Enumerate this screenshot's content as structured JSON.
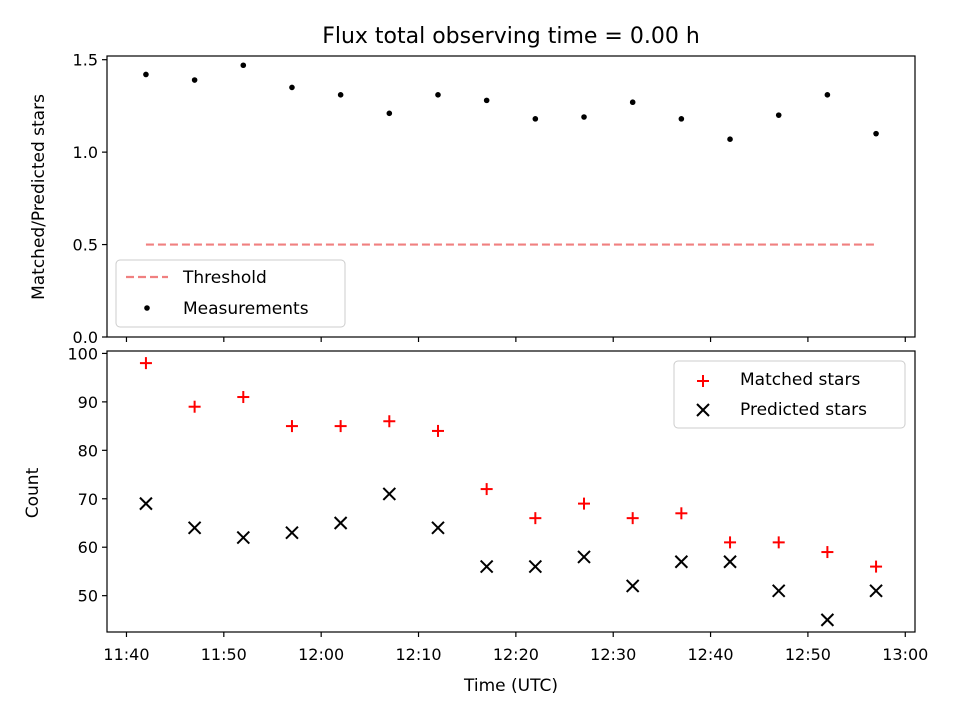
{
  "chart_data": [
    {
      "type": "scatter",
      "title": "Flux total observing time = 0.00 h",
      "xlabel": "",
      "ylabel": "Matched/Predicted stars",
      "ylim": [
        0,
        1.52
      ],
      "yticks": [
        "0.0",
        "0.5",
        "1.0",
        "1.5"
      ],
      "legend_position": "lower-left",
      "threshold": {
        "name": "Threshold",
        "value": 0.5,
        "x_start": "11:42",
        "x_end": "12:57",
        "color": "#f08080",
        "style": "dashed"
      },
      "series": [
        {
          "name": "Measurements",
          "color": "#000000",
          "marker": "dot",
          "x": [
            "11:42",
            "11:47",
            "11:52",
            "11:57",
            "12:02",
            "12:07",
            "12:12",
            "12:17",
            "12:22",
            "12:27",
            "12:32",
            "12:37",
            "12:42",
            "12:47",
            "12:52",
            "12:57"
          ],
          "y": [
            1.42,
            1.39,
            1.47,
            1.35,
            1.31,
            1.21,
            1.31,
            1.28,
            1.18,
            1.19,
            1.27,
            1.18,
            1.07,
            1.2,
            1.31,
            1.1
          ]
        }
      ]
    },
    {
      "type": "scatter",
      "title": "",
      "xlabel": "Time (UTC)",
      "ylabel": "Count",
      "ylim": [
        42.5,
        100.5
      ],
      "yticks": [
        "50",
        "60",
        "70",
        "80",
        "90",
        "100"
      ],
      "xlim": [
        "11:38",
        "13:01"
      ],
      "xticks": [
        "11:40",
        "11:50",
        "12:00",
        "12:10",
        "12:20",
        "12:30",
        "12:40",
        "12:50",
        "13:00"
      ],
      "legend_position": "top-right",
      "series": [
        {
          "name": "Matched stars",
          "color": "#ff0000",
          "marker": "plus",
          "x": [
            "11:42",
            "11:47",
            "11:52",
            "11:57",
            "12:02",
            "12:07",
            "12:12",
            "12:17",
            "12:22",
            "12:27",
            "12:32",
            "12:37",
            "12:42",
            "12:47",
            "12:52",
            "12:57"
          ],
          "y": [
            98,
            89,
            91,
            85,
            85,
            86,
            84,
            72,
            66,
            69,
            66,
            67,
            61,
            61,
            59,
            56
          ]
        },
        {
          "name": "Predicted stars",
          "color": "#000000",
          "marker": "x",
          "x": [
            "11:42",
            "11:47",
            "11:52",
            "11:57",
            "12:02",
            "12:07",
            "12:12",
            "12:17",
            "12:22",
            "12:27",
            "12:32",
            "12:37",
            "12:42",
            "12:47",
            "12:52",
            "12:57"
          ],
          "y": [
            69,
            64,
            62,
            63,
            65,
            71,
            64,
            56,
            56,
            58,
            52,
            57,
            57,
            51,
            45,
            51
          ]
        }
      ]
    }
  ]
}
